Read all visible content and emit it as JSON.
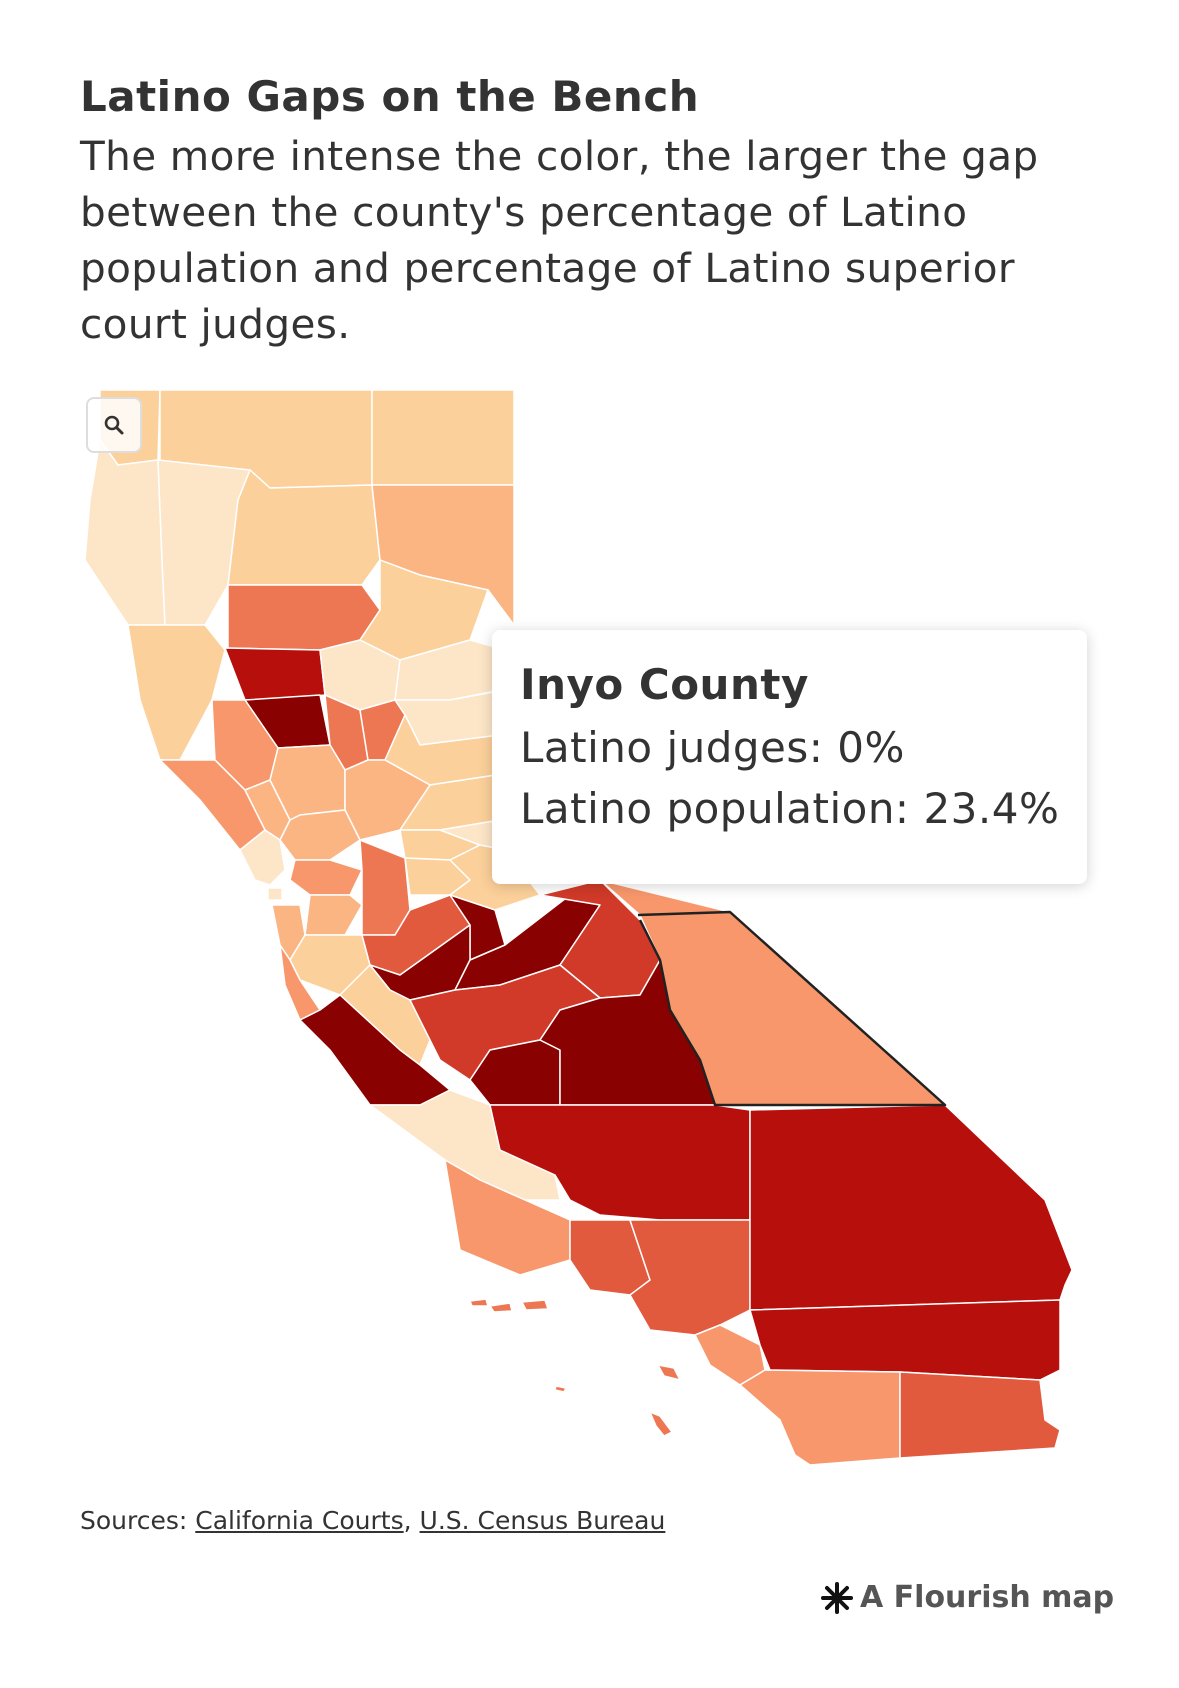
{
  "header": {
    "title": "Latino Gaps on the Bench",
    "subtitle": "The more intense the color, the larger the gap between the county's percentage of Latino population and percentage of Latino superior court judges."
  },
  "controls": {
    "zoom_icon": "search-icon"
  },
  "tooltip": {
    "county": "Inyo County",
    "judges_label": "Latino judges:",
    "judges_value": "0%",
    "population_label": "Latino population:",
    "population_value": "23.4%"
  },
  "colors": {
    "scale": [
      "#fde5c7",
      "#fcd09a",
      "#fbb583",
      "#f7976b",
      "#ee7753",
      "#e25a3e",
      "#d13a28",
      "#b60f0c",
      "#8a0101"
    ],
    "highlight_outline": "#222222"
  },
  "footer": {
    "sources_label": "Sources:",
    "source_1": "California Courts",
    "source_sep": ",",
    "source_2": "U.S. Census Bureau",
    "credit": "A Flourish map",
    "credit_icon": "flourish-asterisk-icon"
  }
}
